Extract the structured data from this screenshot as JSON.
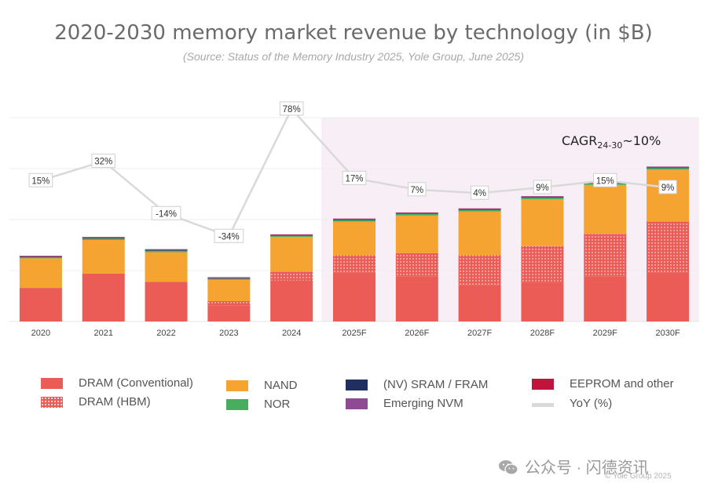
{
  "title": "2020-2030 memory market revenue by technology (in $B)",
  "subtitle": "(Source: Status of the Memory Industry 2025, Yole Group, June 2025)",
  "chart_data": {
    "type": "bar",
    "stacked": true,
    "categories": [
      "2020",
      "2021",
      "2022",
      "2023",
      "2024",
      "2025F",
      "2026F",
      "2027F",
      "2028F",
      "2029F",
      "2030F"
    ],
    "ylim": [
      0,
      200
    ],
    "forecast_start_index": 5,
    "series": [
      {
        "name": "DRAM (Conventional)",
        "color": "#ec5c56",
        "pattern": "solid",
        "values": [
          33,
          47,
          39,
          16,
          40,
          48,
          44,
          36,
          38,
          44,
          48
        ]
      },
      {
        "name": "DRAM (HBM)",
        "color": "#ec5c56",
        "pattern": "dots",
        "values": [
          0,
          0,
          0,
          4,
          9,
          17,
          23,
          29,
          36,
          42,
          50
        ]
      },
      {
        "name": "NAND",
        "color": "#f6a431",
        "pattern": "solid",
        "values": [
          29,
          33,
          29,
          21,
          34,
          33,
          37,
          43,
          46,
          48,
          51
        ]
      },
      {
        "name": "NOR",
        "color": "#48ad5f",
        "pattern": "solid",
        "values": [
          1,
          1.5,
          1.5,
          1,
          1,
          1.5,
          1.5,
          1.5,
          1.5,
          1.5,
          1.5
        ]
      },
      {
        "name": "(NV) SRAM / FRAM",
        "color": "#1f2f5f",
        "pattern": "solid",
        "values": [
          0.5,
          0.5,
          0.5,
          0.5,
          0.5,
          0.5,
          0.5,
          0.5,
          0.5,
          0.5,
          0.5
        ]
      },
      {
        "name": "EEPROM and other",
        "color": "#c0143c",
        "pattern": "solid",
        "values": [
          0.5,
          0.5,
          0.5,
          0.5,
          0.5,
          0.5,
          0.5,
          0.5,
          0.5,
          0.5,
          0.5
        ]
      },
      {
        "name": "Emerging NVM",
        "color": "#8e4a93",
        "pattern": "solid",
        "values": [
          0.5,
          0.5,
          0.5,
          0.5,
          0.5,
          0.5,
          0.5,
          0.5,
          0.5,
          0.5,
          0.5
        ]
      }
    ],
    "yoy": {
      "name": "YoY (%)",
      "color": "#d9d9d9",
      "values": [
        15,
        32,
        -14,
        -34,
        78,
        17,
        7,
        4,
        9,
        15,
        9
      ],
      "labels": [
        "15%",
        "32%",
        "-14%",
        "-34%",
        "78%",
        "17%",
        "7%",
        "4%",
        "9%",
        "15%",
        "9%"
      ]
    },
    "annotation": {
      "prefix": "CAGR",
      "subscript": "24-30",
      "suffix": "~10%"
    }
  },
  "legend": [
    {
      "label": "DRAM (Conventional)",
      "color": "#ec5c56",
      "pattern": "solid"
    },
    {
      "label": "DRAM (HBM)",
      "color": "#ec5c56",
      "pattern": "dots"
    },
    {
      "label": "NAND",
      "color": "#f6a431",
      "pattern": "solid"
    },
    {
      "label": "NOR",
      "color": "#48ad5f",
      "pattern": "solid"
    },
    {
      "label": "(NV) SRAM / FRAM",
      "color": "#1f2f5f",
      "pattern": "solid"
    },
    {
      "label": "Emerging NVM",
      "color": "#8e4a93",
      "pattern": "solid"
    },
    {
      "label": "EEPROM and other",
      "color": "#c0143c",
      "pattern": "solid"
    },
    {
      "label": "YoY (%)",
      "color": "#d9d9d9",
      "pattern": "line"
    }
  ],
  "watermark": "公众号 · 闪德资讯",
  "copyright": "© Yole Group 2025"
}
